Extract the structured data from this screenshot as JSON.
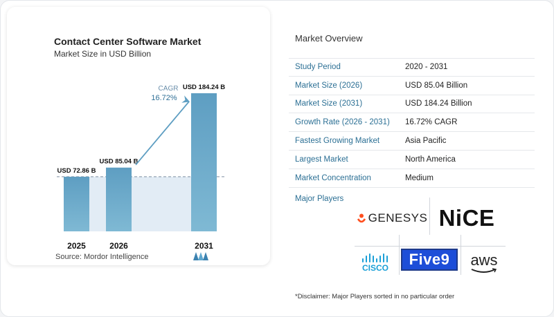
{
  "chart_data": {
    "type": "bar",
    "title": "Contact Center Software Market",
    "subtitle": "Market Size in USD Billion",
    "categories": [
      "2025",
      "2026",
      "2031"
    ],
    "values": [
      72.86,
      85.04,
      184.24
    ],
    "value_labels": [
      "USD 72.86 B",
      "USD 85.04 B",
      "USD 184.24 B"
    ],
    "annotation": {
      "label": "CAGR",
      "value": "16.72%"
    },
    "colors": {
      "bar": "#5e9ec2",
      "bar_light": "#7fb9d4",
      "shade": "#e2ecf5",
      "arrow": "#5e9ec2"
    }
  },
  "source": "Source:  Mordor Intelligence",
  "overview": {
    "title": "Market Overview",
    "rows": [
      {
        "key": "Study Period",
        "value": "2020 - 2031"
      },
      {
        "key": "Market Size (2026)",
        "value": "USD 85.04 Billion"
      },
      {
        "key": "Market Size (2031)",
        "value": "USD 184.24 Billion"
      },
      {
        "key": "Growth Rate (2026 - 2031)",
        "value": "16.72% CAGR"
      },
      {
        "key": "Fastest Growing Market",
        "value": "Asia Pacific"
      },
      {
        "key": "Largest Market",
        "value": "North America"
      },
      {
        "key": "Market Concentration",
        "value": "Medium"
      }
    ]
  },
  "players": {
    "title": "Major Players",
    "logos": [
      "GENESYS",
      "NiCE",
      "cisco",
      "Five9",
      "aws"
    ]
  },
  "disclaimer": "*Disclaimer: Major Players sorted in no particular order"
}
